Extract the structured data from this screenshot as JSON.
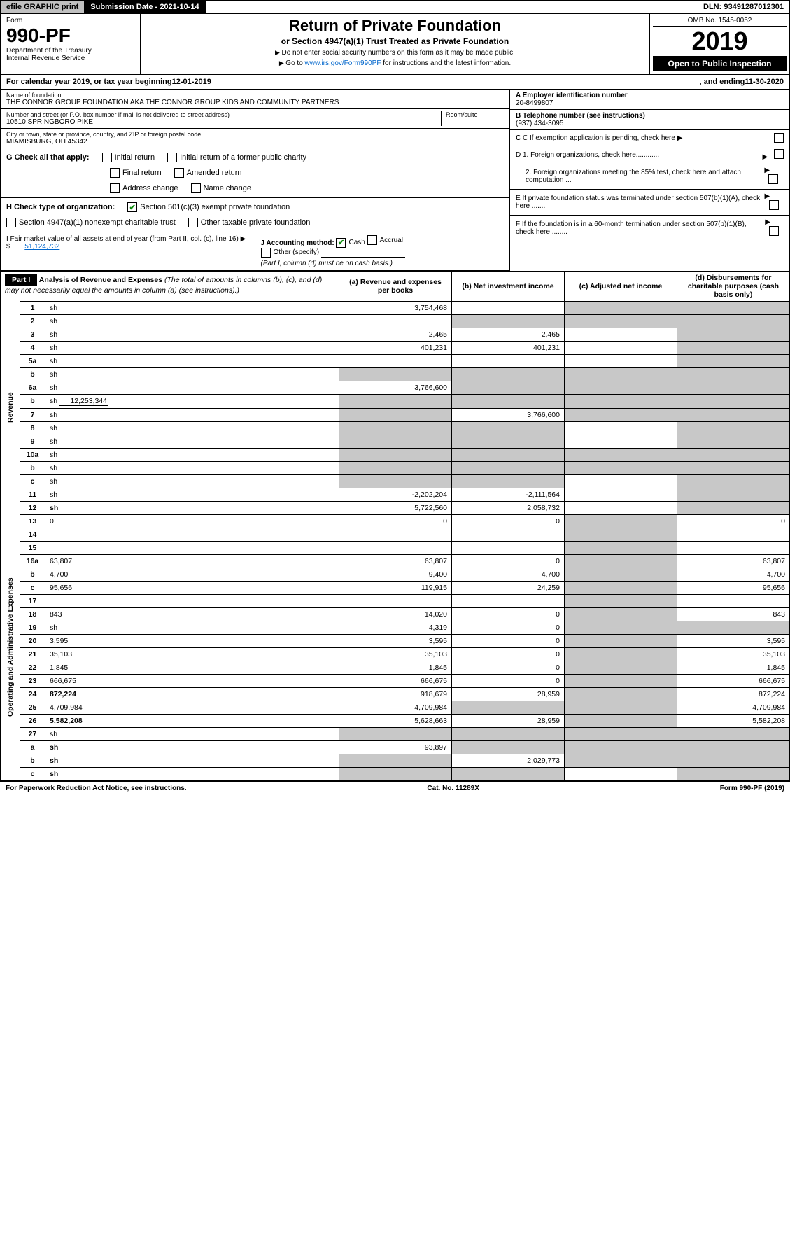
{
  "topbar": {
    "efile": "efile GRAPHIC print",
    "submission": "Submission Date - 2021-10-14",
    "dln": "DLN: 93491287012301"
  },
  "header": {
    "form_label": "Form",
    "form_no": "990-PF",
    "dept": "Department of the Treasury",
    "irs": "Internal Revenue Service",
    "title": "Return of Private Foundation",
    "subtitle": "or Section 4947(a)(1) Trust Treated as Private Foundation",
    "note1": "Do not enter social security numbers on this form as it may be made public.",
    "note2_prefix": "Go to ",
    "note2_link": "www.irs.gov/Form990PF",
    "note2_suffix": " for instructions and the latest information.",
    "omb": "OMB No. 1545-0052",
    "year": "2019",
    "open": "Open to Public Inspection"
  },
  "calyear": {
    "prefix": "For calendar year 2019, or tax year beginning ",
    "begin": "12-01-2019",
    "mid": ", and ending ",
    "end": "11-30-2020"
  },
  "entity": {
    "name_label": "Name of foundation",
    "name": "THE CONNOR GROUP FOUNDATION AKA THE CONNOR GROUP KIDS AND COMMUNITY PARTNERS",
    "addr_label": "Number and street (or P.O. box number if mail is not delivered to street address)",
    "room_label": "Room/suite",
    "street": "10510 SPRINGBORO PIKE",
    "city_label": "City or town, state or province, country, and ZIP or foreign postal code",
    "city": "MIAMISBURG, OH  45342",
    "ein_label": "A Employer identification number",
    "ein": "20-8499807",
    "tel_label": "B Telephone number (see instructions)",
    "tel": "(937) 434-3095",
    "c_label": "C If exemption application is pending, check here",
    "d1": "D 1. Foreign organizations, check here............",
    "d2": "2. Foreign organizations meeting the 85% test, check here and attach computation ...",
    "e": "E If private foundation status was terminated under section 507(b)(1)(A), check here .......",
    "f": "F If the foundation is in a 60-month termination under section 507(b)(1)(B), check here ........"
  },
  "g": {
    "label": "G Check all that apply:",
    "opts": [
      "Initial return",
      "Initial return of a former public charity",
      "Final return",
      "Amended return",
      "Address change",
      "Name change"
    ]
  },
  "h": {
    "label": "H Check type of organization:",
    "opt1": "Section 501(c)(3) exempt private foundation",
    "opt2": "Section 4947(a)(1) nonexempt charitable trust",
    "opt3": "Other taxable private foundation"
  },
  "i": {
    "label": "I Fair market value of all assets at end of year (from Part II, col. (c), line 16)",
    "value": "51,124,732"
  },
  "j": {
    "label": "J Accounting method:",
    "cash": "Cash",
    "accrual": "Accrual",
    "other": "Other (specify)",
    "note": "(Part I, column (d) must be on cash basis.)"
  },
  "part1": {
    "head": "Part I",
    "title": "Analysis of Revenue and Expenses",
    "title_note": "(The total of amounts in columns (b), (c), and (d) may not necessarily equal the amounts in column (a) (see instructions).)",
    "cols": {
      "a": "(a)   Revenue and expenses per books",
      "b": "(b)   Net investment income",
      "c": "(c)   Adjusted net income",
      "d": "(d)   Disbursements for charitable purposes (cash basis only)"
    }
  },
  "side": {
    "revenue": "Revenue",
    "expenses": "Operating and Administrative Expenses"
  },
  "rows": [
    {
      "n": "1",
      "d": "sh",
      "a": "3,754,468",
      "b": "",
      "c": "sh"
    },
    {
      "n": "2",
      "d": "sh",
      "a": "",
      "b": "sh",
      "c": "sh"
    },
    {
      "n": "3",
      "d": "sh",
      "a": "2,465",
      "b": "2,465",
      "c": ""
    },
    {
      "n": "4",
      "d": "sh",
      "a": "401,231",
      "b": "401,231",
      "c": ""
    },
    {
      "n": "5a",
      "d": "sh",
      "a": "",
      "b": "",
      "c": ""
    },
    {
      "n": "b",
      "d": "sh",
      "a": "sh",
      "b": "sh",
      "c": "sh"
    },
    {
      "n": "6a",
      "d": "sh",
      "a": "3,766,600",
      "b": "sh",
      "c": "sh"
    },
    {
      "n": "b",
      "d": "sh",
      "inline": "12,253,344",
      "a": "sh",
      "b": "sh",
      "c": "sh"
    },
    {
      "n": "7",
      "d": "sh",
      "a": "sh",
      "b": "3,766,600",
      "c": "sh"
    },
    {
      "n": "8",
      "d": "sh",
      "a": "sh",
      "b": "sh",
      "c": ""
    },
    {
      "n": "9",
      "d": "sh",
      "a": "sh",
      "b": "sh",
      "c": ""
    },
    {
      "n": "10a",
      "d": "sh",
      "a": "sh",
      "b": "sh",
      "c": "sh"
    },
    {
      "n": "b",
      "d": "sh",
      "a": "sh",
      "b": "sh",
      "c": "sh"
    },
    {
      "n": "c",
      "d": "sh",
      "a": "sh",
      "b": "sh",
      "c": ""
    },
    {
      "n": "11",
      "d": "sh",
      "a": "-2,202,204",
      "b": "-2,111,564",
      "c": ""
    },
    {
      "n": "12",
      "d": "sh",
      "bold": true,
      "a": "5,722,560",
      "b": "2,058,732",
      "c": ""
    },
    {
      "n": "13",
      "d": "0",
      "a": "0",
      "b": "0",
      "c": "sh"
    },
    {
      "n": "14",
      "d": "",
      "a": "",
      "b": "",
      "c": "sh"
    },
    {
      "n": "15",
      "d": "",
      "a": "",
      "b": "",
      "c": "sh"
    },
    {
      "n": "16a",
      "d": "63,807",
      "a": "63,807",
      "b": "0",
      "c": "sh"
    },
    {
      "n": "b",
      "d": "4,700",
      "a": "9,400",
      "b": "4,700",
      "c": "sh"
    },
    {
      "n": "c",
      "d": "95,656",
      "a": "119,915",
      "b": "24,259",
      "c": "sh"
    },
    {
      "n": "17",
      "d": "",
      "a": "",
      "b": "",
      "c": "sh"
    },
    {
      "n": "18",
      "d": "843",
      "a": "14,020",
      "b": "0",
      "c": "sh"
    },
    {
      "n": "19",
      "d": "sh",
      "a": "4,319",
      "b": "0",
      "c": "sh"
    },
    {
      "n": "20",
      "d": "3,595",
      "a": "3,595",
      "b": "0",
      "c": "sh"
    },
    {
      "n": "21",
      "d": "35,103",
      "a": "35,103",
      "b": "0",
      "c": "sh"
    },
    {
      "n": "22",
      "d": "1,845",
      "a": "1,845",
      "b": "0",
      "c": "sh"
    },
    {
      "n": "23",
      "d": "666,675",
      "a": "666,675",
      "b": "0",
      "c": "sh"
    },
    {
      "n": "24",
      "d": "872,224",
      "bold": true,
      "a": "918,679",
      "b": "28,959",
      "c": "sh"
    },
    {
      "n": "25",
      "d": "4,709,984",
      "a": "4,709,984",
      "b": "sh",
      "c": "sh"
    },
    {
      "n": "26",
      "d": "5,582,208",
      "bold": true,
      "a": "5,628,663",
      "b": "28,959",
      "c": "sh"
    },
    {
      "n": "27",
      "d": "sh",
      "a": "sh",
      "b": "sh",
      "c": "sh"
    },
    {
      "n": "a",
      "d": "sh",
      "bold": true,
      "a": "93,897",
      "b": "sh",
      "c": "sh"
    },
    {
      "n": "b",
      "d": "sh",
      "bold": true,
      "a": "sh",
      "b": "2,029,773",
      "c": "sh"
    },
    {
      "n": "c",
      "d": "sh",
      "bold": true,
      "a": "sh",
      "b": "sh",
      "c": ""
    }
  ],
  "footer": {
    "left": "For Paperwork Reduction Act Notice, see instructions.",
    "cat": "Cat. No. 11289X",
    "right": "Form 990-PF (2019)"
  }
}
